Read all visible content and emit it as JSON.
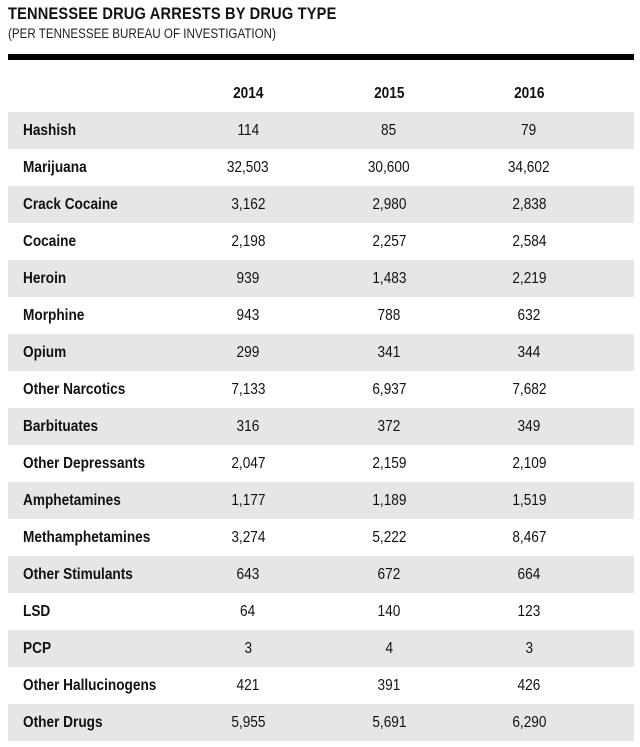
{
  "chart_data": {
    "type": "table",
    "title": "TENNESSEE DRUG ARRESTS BY DRUG TYPE",
    "subtitle": "(PER TENNESSEE BUREAU OF INVESTIGATION)",
    "columns": [
      "2014",
      "2015",
      "2016"
    ],
    "rows": [
      {
        "label": "Hashish",
        "values": [
          "114",
          "85",
          "79"
        ]
      },
      {
        "label": "Marijuana",
        "values": [
          "32,503",
          "30,600",
          "34,602"
        ]
      },
      {
        "label": "Crack Cocaine",
        "values": [
          "3,162",
          "2,980",
          "2,838"
        ]
      },
      {
        "label": "Cocaine",
        "values": [
          "2,198",
          "2,257",
          "2,584"
        ]
      },
      {
        "label": "Heroin",
        "values": [
          "939",
          "1,483",
          "2,219"
        ]
      },
      {
        "label": "Morphine",
        "values": [
          "943",
          "788",
          "632"
        ]
      },
      {
        "label": "Opium",
        "values": [
          "299",
          "341",
          "344"
        ]
      },
      {
        "label": "Other Narcotics",
        "values": [
          "7,133",
          "6,937",
          "7,682"
        ]
      },
      {
        "label": "Barbituates",
        "values": [
          "316",
          "372",
          "349"
        ]
      },
      {
        "label": "Other Depressants",
        "values": [
          "2,047",
          "2,159",
          "2,109"
        ]
      },
      {
        "label": "Amphetamines",
        "values": [
          "1,177",
          "1,189",
          "1,519"
        ]
      },
      {
        "label": "Methamphetamines",
        "values": [
          "3,274",
          "5,222",
          "8,467"
        ]
      },
      {
        "label": "Other Stimulants",
        "values": [
          "643",
          "672",
          "664"
        ]
      },
      {
        "label": "LSD",
        "values": [
          "64",
          "140",
          "123"
        ]
      },
      {
        "label": "PCP",
        "values": [
          "3",
          "4",
          "3"
        ]
      },
      {
        "label": "Other Hallucinogens",
        "values": [
          "421",
          "391",
          "426"
        ]
      },
      {
        "label": "Other Drugs",
        "values": [
          "5,955",
          "5,691",
          "6,290"
        ]
      }
    ],
    "row_shading": "alternating",
    "shade_color": "#e6e6e6",
    "rule_color": "#000000"
  }
}
